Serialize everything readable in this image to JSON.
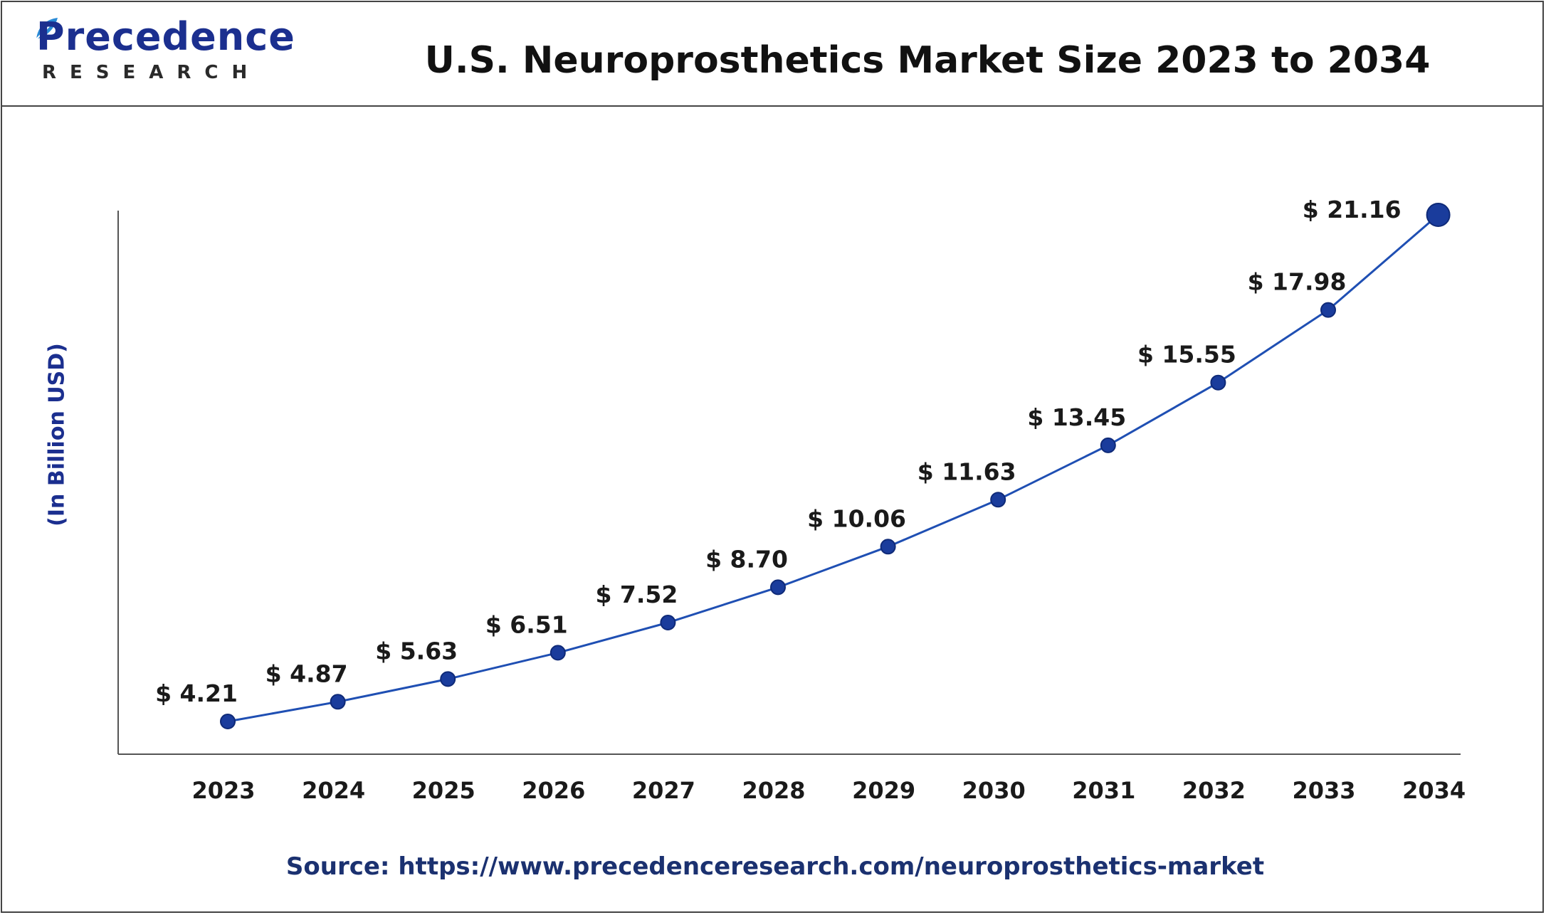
{
  "header": {
    "logo_text": "Precedence",
    "logo_subtext": "RESEARCH",
    "title": "U.S. Neuroprosthetics Market Size 2023 to 2034"
  },
  "footer": {
    "source": "Source: https://www.precedenceresearch.com/neuroprosthetics-market"
  },
  "colors": {
    "line": "#1f4fb3",
    "marker": "#1a3c9c",
    "brand": "#1b2f8f",
    "axis": "#555555"
  },
  "chart_data": {
    "type": "line",
    "title": "U.S. Neuroprosthetics Market Size 2023 to 2034",
    "xlabel": "",
    "ylabel": "(In Billion USD)",
    "categories": [
      "2023",
      "2024",
      "2025",
      "2026",
      "2027",
      "2028",
      "2029",
      "2030",
      "2031",
      "2032",
      "2033",
      "2034"
    ],
    "series": [
      {
        "values": [
          4.21,
          4.87,
          5.63,
          6.51,
          7.52,
          8.7,
          10.06,
          11.63,
          13.45,
          15.55,
          17.98,
          21.16
        ]
      }
    ],
    "data_labels": [
      "$ 4.21",
      "$ 4.87",
      "$ 5.63",
      "$ 6.51",
      "$ 7.52",
      "$ 8.70",
      "$ 10.06",
      "$ 11.63",
      "$ 13.45",
      "$ 15.55",
      "$ 17.98",
      "$ 21.16"
    ],
    "ylim": [
      3,
      22
    ],
    "grid": false,
    "legend": "none"
  }
}
